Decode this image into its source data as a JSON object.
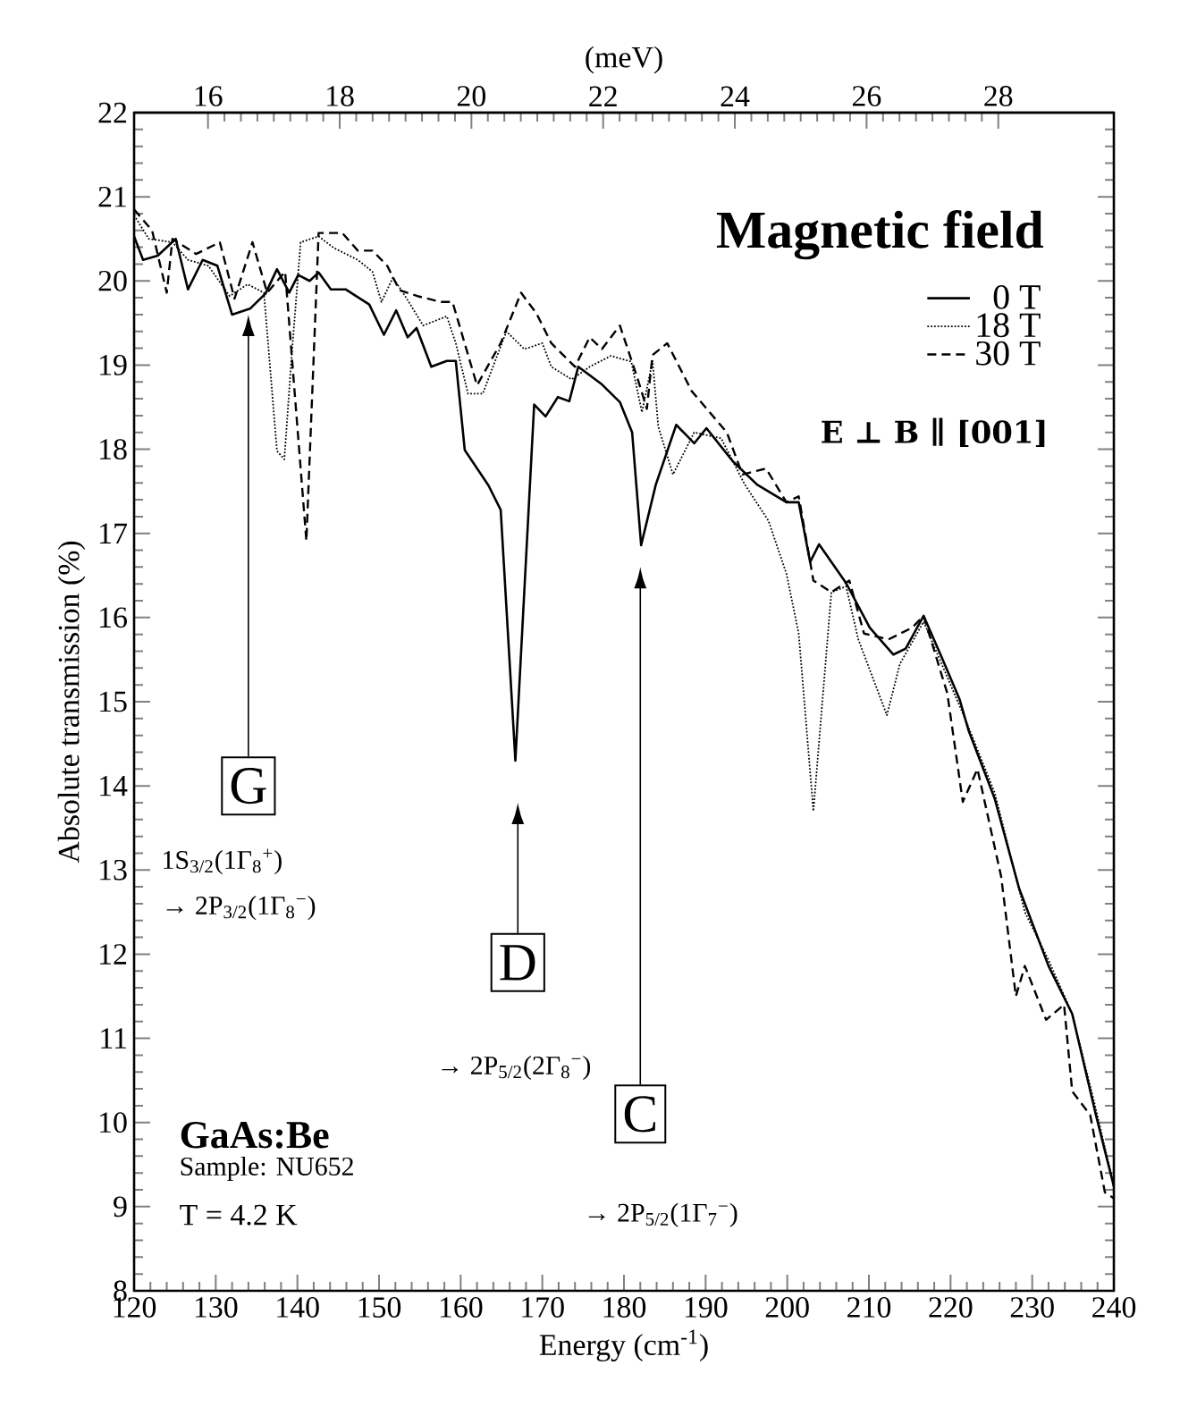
{
  "chart_data": {
    "type": "line",
    "xlabel": "Energy (cm$^{-1}$)",
    "ylabel": "Absolute transmission (%)",
    "x2label": "(meV)",
    "legend_title": "Magnetic field",
    "xlim": [
      120,
      240
    ],
    "ylim": [
      8,
      22
    ],
    "x2lim": [
      14.878,
      29.755
    ],
    "xticks": [
      120,
      130,
      140,
      150,
      160,
      170,
      180,
      190,
      200,
      210,
      220,
      230,
      240
    ],
    "yticks": [
      8,
      9,
      10,
      11,
      12,
      13,
      14,
      15,
      16,
      17,
      18,
      19,
      20,
      21,
      22
    ],
    "x2ticks": [
      16,
      18,
      20,
      22,
      24,
      26,
      28
    ],
    "grid": false,
    "legend": "top right",
    "marker": "none",
    "series": [
      {
        "name": "0 T",
        "color": "#000000",
        "line_style": "solid",
        "x": [
          120,
          121.1,
          122.9,
          125.1,
          126.6,
          128.4,
          130.2,
          132.0,
          134.2,
          136.1,
          137.5,
          139.0,
          140.1,
          141.5,
          142.6,
          144.1,
          145.9,
          148.8,
          150.6,
          152.1,
          153.5,
          154.6,
          156.4,
          158.3,
          159.4,
          160.5,
          163.4,
          164.9,
          166.7,
          169.0,
          170.4,
          171.9,
          173.3,
          174.4,
          177.3,
          179.5,
          181.0,
          182.1,
          183.9,
          186.4,
          188.6,
          190.1,
          193.3,
          196.3,
          199.9,
          201.4,
          202.8,
          203.9,
          207.2,
          210.1,
          213.0,
          214.5,
          216.7,
          218.9,
          221.1,
          222.2,
          225.4,
          228.4,
          232.0,
          234.9,
          237.8,
          240
        ],
        "values": [
          20.53,
          20.25,
          20.3,
          20.5,
          19.9,
          20.25,
          20.18,
          19.6,
          19.67,
          19.85,
          20.14,
          19.86,
          20.07,
          20.0,
          20.1,
          19.9,
          19.9,
          19.72,
          19.36,
          19.65,
          19.33,
          19.44,
          18.98,
          19.05,
          19.05,
          17.99,
          17.57,
          17.28,
          14.3,
          18.53,
          18.39,
          18.62,
          18.57,
          18.98,
          18.77,
          18.56,
          18.2,
          16.86,
          17.58,
          18.29,
          18.07,
          18.25,
          17.86,
          17.58,
          17.37,
          17.37,
          16.66,
          16.87,
          16.41,
          15.88,
          15.56,
          15.63,
          16.02,
          15.53,
          15.03,
          14.66,
          13.85,
          12.78,
          11.86,
          11.29,
          10.09,
          9.24
        ]
      },
      {
        "name": "18 T",
        "color": "#000000",
        "line_style": "dotted",
        "x": [
          120,
          121.8,
          124.7,
          126.6,
          129.1,
          131.7,
          133.9,
          135.9,
          137.5,
          138.4,
          139.3,
          140.4,
          142.6,
          144.5,
          147.4,
          149.2,
          150.3,
          151.7,
          153.2,
          155.4,
          158.3,
          159.4,
          160.9,
          162.7,
          165.6,
          167.8,
          170.0,
          171.1,
          173.6,
          175.8,
          178.4,
          180.9,
          182.2,
          183.5,
          184.2,
          186.0,
          188.6,
          191.9,
          194.8,
          197.7,
          199.9,
          201.4,
          203.2,
          205.4,
          207.2,
          208.7,
          212.2,
          213.8,
          216.7,
          221.9,
          225.4,
          229.1,
          232.0,
          234.9,
          237.8,
          240
        ],
        "values": [
          20.78,
          20.5,
          20.46,
          20.25,
          20.18,
          19.82,
          19.96,
          19.86,
          17.98,
          17.88,
          19.11,
          20.46,
          20.53,
          20.39,
          20.25,
          20.11,
          19.75,
          20.04,
          19.82,
          19.47,
          19.58,
          19.26,
          18.66,
          18.66,
          19.4,
          19.19,
          19.26,
          18.98,
          18.83,
          18.98,
          19.11,
          19.04,
          18.44,
          19.05,
          18.27,
          17.7,
          18.2,
          18.13,
          17.58,
          17.15,
          16.52,
          15.81,
          13.7,
          16.3,
          16.37,
          15.74,
          14.84,
          15.45,
          15.95,
          14.77,
          13.92,
          12.5,
          11.93,
          11.29,
          10.16,
          9.24
        ]
      },
      {
        "name": "30 T",
        "color": "#000000",
        "line_style": "dashed",
        "x": [
          120,
          122.2,
          124.0,
          124.7,
          127.6,
          130.5,
          132.3,
          134.5,
          136.3,
          138.5,
          141.1,
          142.6,
          145.5,
          147.4,
          149.2,
          151.0,
          152.5,
          154.7,
          157.6,
          159.0,
          162.0,
          164.9,
          167.4,
          169.3,
          171.1,
          174.0,
          175.8,
          177.3,
          179.5,
          181.7,
          182.8,
          183.5,
          185.3,
          188.3,
          192.6,
          194.5,
          197.4,
          199.9,
          201.4,
          203.2,
          205.4,
          207.6,
          209.4,
          212.4,
          215.3,
          216.7,
          219.6,
          221.5,
          223.3,
          226.2,
          228.0,
          229.1,
          231.7,
          233.9,
          234.9,
          237.1,
          238.9,
          240
        ],
        "values": [
          20.85,
          20.6,
          19.86,
          20.5,
          20.32,
          20.46,
          19.79,
          20.46,
          19.86,
          20.11,
          16.91,
          20.57,
          20.57,
          20.36,
          20.36,
          20.18,
          19.89,
          19.82,
          19.75,
          19.75,
          18.76,
          19.26,
          19.86,
          19.61,
          19.26,
          18.98,
          19.33,
          19.19,
          19.47,
          18.83,
          18.48,
          19.12,
          19.26,
          18.69,
          18.2,
          17.7,
          17.77,
          17.37,
          17.44,
          16.44,
          16.3,
          16.44,
          15.81,
          15.74,
          15.88,
          16.02,
          15.1,
          13.81,
          14.2,
          12.92,
          11.5,
          11.86,
          11.22,
          11.4,
          10.37,
          10.09,
          9.17,
          9.1
        ]
      }
    ],
    "annotations": [
      "E ⊥ B ∥ [001]",
      "G",
      "1S$_{3/2}$(1Γ$_{8}$$^{+}$)",
      "→ 2P$_{3/2}$(1Γ$_{8}$$^{−}$)",
      "D",
      "→ 2P$_{5/2}$(2Γ$_{8}$$^{−}$)",
      "C",
      "→ 2P$_{5/2}$(1Γ$_{7}$$^{−}$)",
      "GaAs:Be",
      "Sample: NU652",
      "T = 4.2 K"
    ]
  }
}
